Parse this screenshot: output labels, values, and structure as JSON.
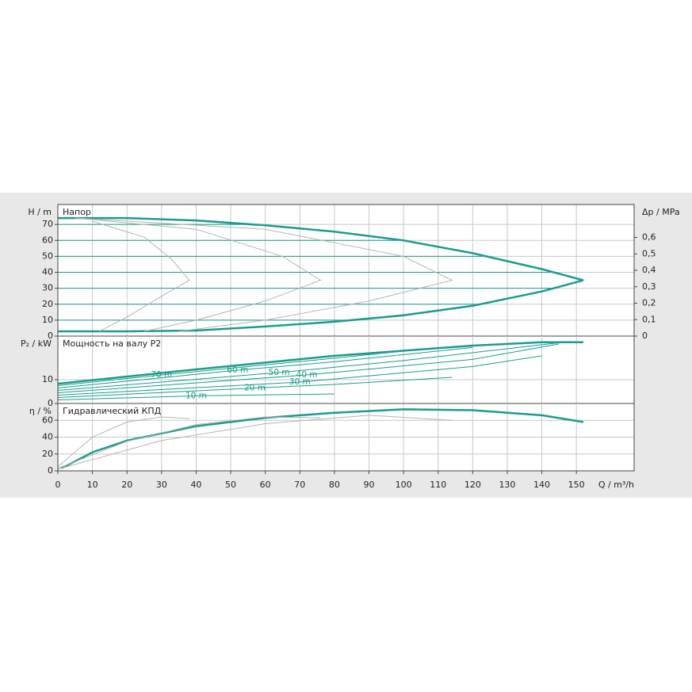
{
  "chart_data": [
    {
      "type": "line",
      "y_label": "H / m",
      "y2_label": "Δp / MPa",
      "title": "Напор",
      "ylim": [
        0,
        82.5
      ],
      "yticks": [
        0,
        10,
        20,
        30,
        40,
        50,
        60,
        70
      ],
      "y2lim": [
        0,
        0.8
      ],
      "y2ticks": [
        0,
        {
          "value": 0.1,
          "label": "0,1"
        },
        {
          "value": 0.2,
          "label": "0,2"
        },
        {
          "value": 0.3,
          "label": "0,3"
        },
        {
          "value": 0.4,
          "label": "0,4"
        },
        {
          "value": 0.5,
          "label": "0,5"
        },
        {
          "value": 0.6,
          "label": "0,6"
        }
      ],
      "grid_color": "#1a9c8c",
      "series": [
        {
          "color": "#1a9c8c",
          "linewidth": 2.5,
          "x": [
            0,
            20,
            40,
            60,
            80,
            100,
            120,
            140,
            152
          ],
          "values": [
            74,
            74,
            72.5,
            69.5,
            65.5,
            60,
            52,
            42,
            35
          ]
        },
        {
          "color": "#1a9c8c",
          "linewidth": 2.5,
          "x": [
            0,
            20,
            40,
            60,
            80,
            100,
            120,
            140,
            152
          ],
          "values": [
            3,
            3,
            3.5,
            6,
            9,
            13,
            19,
            28,
            35
          ]
        },
        {
          "color": "#b4b4b4",
          "linewidth": 1,
          "x": [
            10,
            25,
            33,
            38,
            30,
            20,
            12
          ],
          "values": [
            72,
            62,
            48,
            35,
            25,
            12,
            3
          ]
        },
        {
          "color": "#b4b4b4",
          "linewidth": 1,
          "x": [
            5,
            40,
            65,
            76,
            60,
            40,
            25
          ],
          "values": [
            74,
            67,
            50,
            35,
            22,
            10,
            3
          ]
        },
        {
          "color": "#b4b4b4",
          "linewidth": 1,
          "x": [
            5,
            60,
            100,
            114,
            90,
            60,
            35
          ],
          "values": [
            74,
            67,
            50,
            35,
            22,
            10,
            3
          ]
        }
      ]
    },
    {
      "type": "line",
      "y_label": "P₂ / kW",
      "title": "Мощность на валу P2",
      "ylim": [
        0,
        28.3
      ],
      "yticks": [
        0,
        10
      ],
      "series": [
        {
          "color": "#1a9c8c",
          "linewidth": 2.5,
          "x": [
            0,
            40,
            80,
            120,
            140,
            152
          ],
          "values": [
            8.3,
            14.3,
            20,
            24.3,
            25.7,
            25.7
          ]
        },
        {
          "name": "70 m",
          "color": "#1a9c8c",
          "linewidth": 1,
          "x": [
            0,
            30,
            80,
            100
          ],
          "values": [
            7.5,
            12,
            19,
            22
          ]
        },
        {
          "name": "60 m",
          "color": "#1a9c8c",
          "linewidth": 1,
          "x": [
            0,
            52,
            80,
            120
          ],
          "values": [
            6.5,
            14,
            17.5,
            23.5
          ]
        },
        {
          "name": "50 m",
          "color": "#1a9c8c",
          "linewidth": 1,
          "x": [
            0,
            64,
            100,
            145
          ],
          "values": [
            5.5,
            13,
            18,
            25.5
          ]
        },
        {
          "name": "40 m",
          "color": "#1a9c8c",
          "linewidth": 1,
          "x": [
            0,
            72,
            120,
            145
          ],
          "values": [
            4.5,
            12,
            18.5,
            25
          ]
        },
        {
          "name": "30 m",
          "color": "#1a9c8c",
          "linewidth": 1,
          "x": [
            0,
            70,
            120,
            140
          ],
          "values": [
            3.5,
            9,
            15.5,
            20
          ]
        },
        {
          "name": "20 m",
          "color": "#1a9c8c",
          "linewidth": 1,
          "x": [
            0,
            57,
            80,
            114
          ],
          "values": [
            2.5,
            6.5,
            8,
            11
          ]
        },
        {
          "name": "10 m",
          "color": "#1a9c8c",
          "linewidth": 1,
          "x": [
            0,
            40,
            80
          ],
          "values": [
            1.5,
            3.2,
            4
          ]
        }
      ]
    },
    {
      "type": "line",
      "y_label": "η / %",
      "title": "Гидравлический КПД",
      "x_label": "Q / m³/h",
      "xlim": [
        0,
        166.7
      ],
      "xticks": [
        0,
        10,
        20,
        30,
        40,
        50,
        60,
        70,
        80,
        90,
        100,
        110,
        120,
        130,
        140,
        150
      ],
      "ylim": [
        0,
        80
      ],
      "yticks": [
        0,
        20,
        40,
        60
      ],
      "series": [
        {
          "color": "#1a9c8c",
          "linewidth": 2.5,
          "x": [
            1,
            10,
            20,
            40,
            60,
            80,
            100,
            120,
            140,
            152
          ],
          "values": [
            3,
            22,
            36,
            53,
            63,
            69,
            73,
            72,
            66,
            58
          ]
        },
        {
          "color": "#b4b4b4",
          "linewidth": 1,
          "x": [
            0,
            10,
            20,
            30,
            38
          ],
          "values": [
            5,
            40,
            58,
            64,
            62
          ]
        },
        {
          "color": "#b4b4b4",
          "linewidth": 1,
          "x": [
            0,
            20,
            40,
            60,
            76
          ],
          "values": [
            3,
            35,
            55,
            64,
            63
          ]
        },
        {
          "color": "#b4b4b4",
          "linewidth": 1,
          "x": [
            0,
            30,
            60,
            90,
            114
          ],
          "values": [
            2,
            36,
            56,
            66,
            60
          ]
        }
      ]
    }
  ]
}
